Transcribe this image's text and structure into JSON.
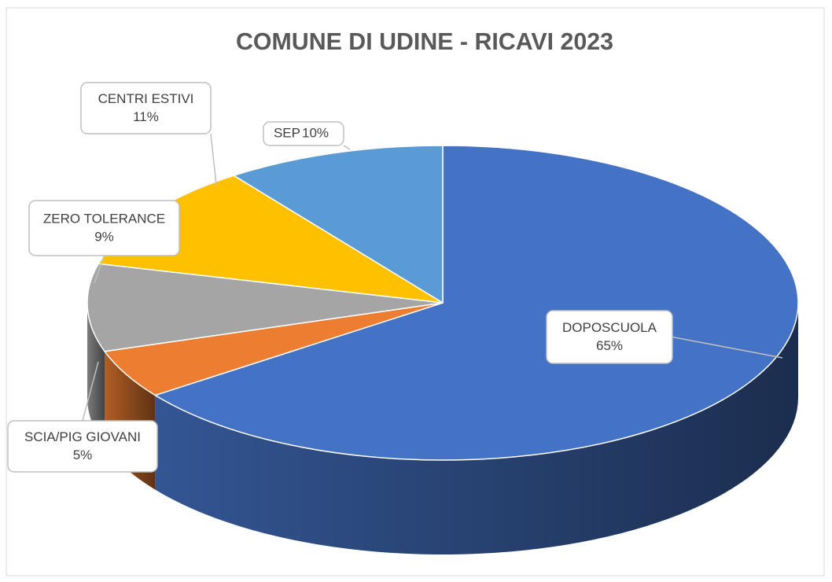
{
  "chart_data": {
    "type": "pie3d",
    "title": "COMUNE DI UDINE - RICAVI 2023",
    "categories": [
      "DOPOSCUOLA",
      "SCIA/PIG GIOVANI",
      "ZERO TOLERANCE",
      "CENTRI ESTIVI",
      "SEP"
    ],
    "values": [
      65,
      5,
      9,
      11,
      10
    ],
    "value_labels": [
      "65%",
      "5%",
      "9%",
      "11%",
      "10%"
    ],
    "colors": [
      "#4472c4",
      "#ed7d31",
      "#a5a5a5",
      "#ffc000",
      "#5b9bd5"
    ]
  }
}
